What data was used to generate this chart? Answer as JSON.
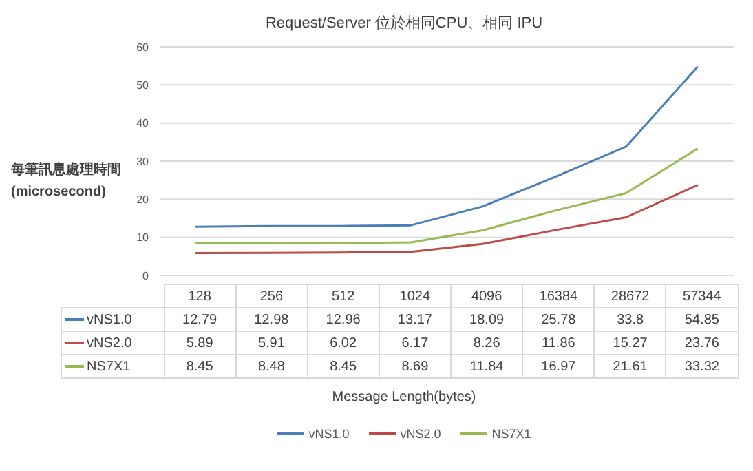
{
  "chart_data": {
    "type": "line",
    "title": "Request/Server 位於相同CPU、相同 IPU",
    "annotations": [
      "Message Length(bytes)"
    ],
    "ylabel": "每筆訊息處理時間 (microsecond)",
    "categories": [
      "128",
      "256",
      "512",
      "1024",
      "4096",
      "16384",
      "28672",
      "57344"
    ],
    "series": [
      {
        "name": "vNS1.0",
        "color": "#4a7ebb",
        "values": [
          12.79,
          12.98,
          12.96,
          13.17,
          18.09,
          25.78,
          33.8,
          54.85
        ]
      },
      {
        "name": "vNS2.0",
        "color": "#be4b48",
        "values": [
          5.89,
          5.91,
          6.02,
          6.17,
          8.26,
          11.86,
          15.27,
          23.76
        ]
      },
      {
        "name": "NS7X1",
        "color": "#98b954",
        "values": [
          8.45,
          8.48,
          8.45,
          8.69,
          11.84,
          16.97,
          21.61,
          33.32
        ]
      }
    ],
    "ylim": [
      0,
      60
    ],
    "yticks": [
      0,
      10,
      20,
      30,
      40,
      50,
      60
    ],
    "grid": "y",
    "legend": "bottom",
    "data_labels": true,
    "marker": "none"
  }
}
